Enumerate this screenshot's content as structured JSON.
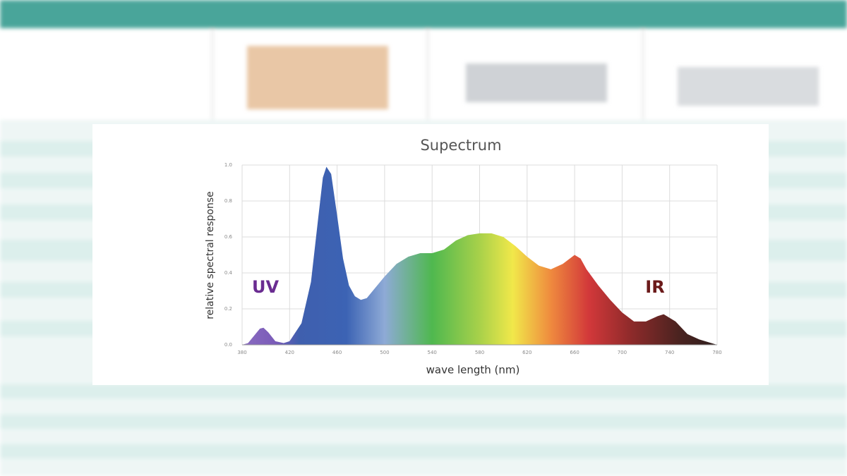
{
  "chart_data": {
    "type": "area",
    "title": "Supectrum",
    "xlabel": "wave length (nm)",
    "ylabel": "relative spectral response",
    "annotations": [
      "UV",
      "IR"
    ],
    "x": [
      380,
      385,
      390,
      395,
      398,
      402,
      408,
      415,
      420,
      430,
      438,
      444,
      448,
      451,
      455,
      460,
      465,
      470,
      475,
      480,
      485,
      490,
      500,
      510,
      520,
      530,
      540,
      550,
      560,
      570,
      580,
      590,
      600,
      610,
      620,
      630,
      640,
      650,
      660,
      665,
      670,
      680,
      690,
      700,
      710,
      720,
      730,
      735,
      745,
      755,
      765,
      780
    ],
    "values": [
      0.0,
      0.01,
      0.05,
      0.09,
      0.095,
      0.07,
      0.02,
      0.01,
      0.02,
      0.12,
      0.35,
      0.7,
      0.93,
      0.99,
      0.95,
      0.72,
      0.48,
      0.33,
      0.27,
      0.25,
      0.26,
      0.3,
      0.38,
      0.45,
      0.49,
      0.51,
      0.51,
      0.53,
      0.58,
      0.61,
      0.62,
      0.62,
      0.6,
      0.55,
      0.49,
      0.44,
      0.42,
      0.45,
      0.5,
      0.48,
      0.42,
      0.33,
      0.25,
      0.18,
      0.13,
      0.13,
      0.16,
      0.17,
      0.13,
      0.06,
      0.03,
      0.0
    ],
    "xlim": [
      380,
      780
    ],
    "xticks": [
      380,
      420,
      460,
      500,
      540,
      580,
      620,
      660,
      700,
      740,
      780
    ],
    "ylim": [
      0,
      1
    ],
    "yticks": [
      {
        "value": 0,
        "label": "0.0"
      },
      0.2,
      0.4,
      0.6,
      0.8,
      {
        "value": 1,
        "label": "1.0"
      }
    ],
    "grid": true
  }
}
